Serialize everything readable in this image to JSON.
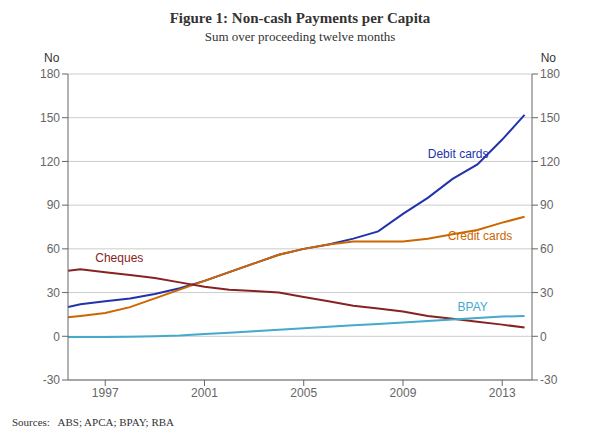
{
  "chart_data": {
    "type": "line",
    "title": "Figure 1: Non-cash Payments per Capita",
    "subtitle": "Sum over proceeding twelve months",
    "source": "Sources:   ABS; APCA; BPAY; RBA",
    "y_label": "No",
    "y2_label": "No",
    "x": [
      1995.5,
      1996,
      1997,
      1998,
      1999,
      2000,
      2001,
      2002,
      2003,
      2004,
      2005,
      2006,
      2007,
      2008,
      2009,
      2010,
      2011,
      2012,
      2013,
      2013.9
    ],
    "xlim": [
      1995.5,
      2014.2
    ],
    "xticks": [
      1997,
      2001,
      2005,
      2009,
      2013
    ],
    "ylim": [
      -30,
      180
    ],
    "yticks": [
      -30,
      0,
      30,
      60,
      90,
      120,
      150,
      180
    ],
    "y2lim": [
      -30,
      180
    ],
    "y2ticks": [
      -30,
      0,
      30,
      60,
      90,
      120,
      150,
      180
    ],
    "grid": "y",
    "series": [
      {
        "name": "Debit cards",
        "color": "#2233aa",
        "values": [
          20,
          22,
          24,
          26,
          29,
          33,
          38,
          44,
          50,
          56,
          60,
          63,
          67,
          72,
          84,
          95,
          108,
          118,
          135,
          152
        ]
      },
      {
        "name": "Credit cards",
        "color": "#cc6600",
        "values": [
          13,
          14,
          16,
          20,
          26,
          32,
          38,
          44,
          50,
          56,
          60,
          63,
          65,
          65,
          65,
          67,
          70,
          73,
          78,
          82
        ]
      },
      {
        "name": "Cheques",
        "color": "#882222",
        "values": [
          45,
          46,
          44,
          42,
          40,
          37,
          34,
          32,
          31,
          30,
          27,
          24,
          21,
          19,
          17,
          14,
          12,
          10,
          8,
          6
        ]
      },
      {
        "name": "BPAY",
        "color": "#44aacc",
        "values": [
          -0.5,
          -0.5,
          -0.5,
          -0.3,
          0.0,
          0.5,
          1.5,
          2.5,
          3.5,
          4.5,
          5.5,
          6.5,
          7.5,
          8.5,
          9.5,
          10.5,
          11.5,
          12.5,
          13.5,
          14.0
        ]
      }
    ],
    "annotations": [
      {
        "text": "Debit cards",
        "x": 2010.0,
        "y": 120,
        "color": "#2233aa"
      },
      {
        "text": "Credit cards",
        "x": 2010.8,
        "y": 64,
        "color": "#cc6600"
      },
      {
        "text": "Cheques",
        "x": 1996.6,
        "y": 49,
        "color": "#882222"
      },
      {
        "text": "BPAY",
        "x": 2011.2,
        "y": 15.5,
        "color": "#44aacc"
      }
    ]
  }
}
